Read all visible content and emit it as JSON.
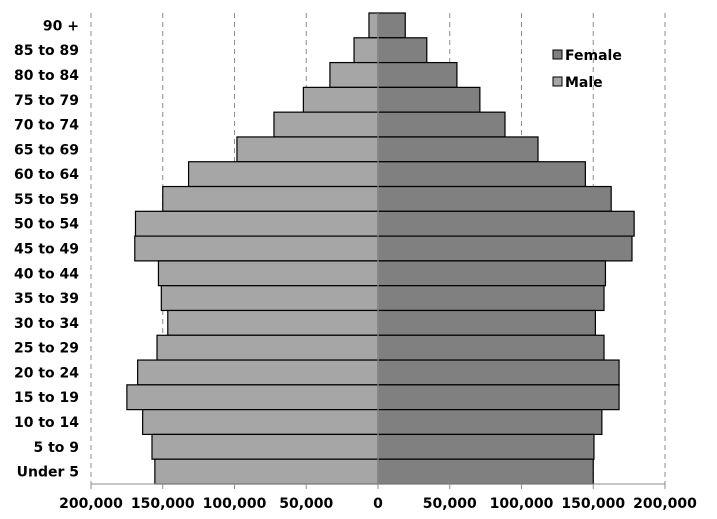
{
  "chart_data": {
    "type": "bar",
    "orientation": "horizontal",
    "subtype": "population-pyramid",
    "title": "",
    "xlabel": "",
    "ylabel": "",
    "xlim": [
      -200000,
      200000
    ],
    "x_ticks": [
      "200,000",
      "150,000",
      "100,000",
      "50,000",
      "0",
      "50,000",
      "100,000",
      "150,000",
      "200,000"
    ],
    "grid": "vertical dashed",
    "legend_position": "upper right (inside)",
    "categories": [
      "90 +",
      "85 to 89",
      "80 to 84",
      "75 to 79",
      "70 to 74",
      "65 to 69",
      "60 to 64",
      "55 to 59",
      "50 to 54",
      "45 to 49",
      "40 to 44",
      "35 to 39",
      "30 to 34",
      "25 to 29",
      "20 to 24",
      "15 to 19",
      "10 to 14",
      "5 to 9",
      "Under 5"
    ],
    "series": [
      {
        "name": "Female",
        "side": "right",
        "color": "#808080",
        "values": [
          19000,
          34000,
          55000,
          71000,
          88500,
          111500,
          144500,
          162500,
          178500,
          177000,
          158500,
          157500,
          151500,
          157500,
          168000,
          168000,
          156000,
          150500,
          150000
        ]
      },
      {
        "name": "Male",
        "side": "left",
        "color": "#a6a6a6",
        "values": [
          6300,
          16700,
          33500,
          52000,
          72500,
          98300,
          132000,
          150000,
          169000,
          169500,
          153000,
          151000,
          146500,
          154000,
          167500,
          175000,
          164000,
          157500,
          155500
        ]
      }
    ]
  },
  "legend": {
    "items": [
      {
        "label": "Female",
        "color": "#808080"
      },
      {
        "label": "Male",
        "color": "#a6a6a6"
      }
    ]
  }
}
